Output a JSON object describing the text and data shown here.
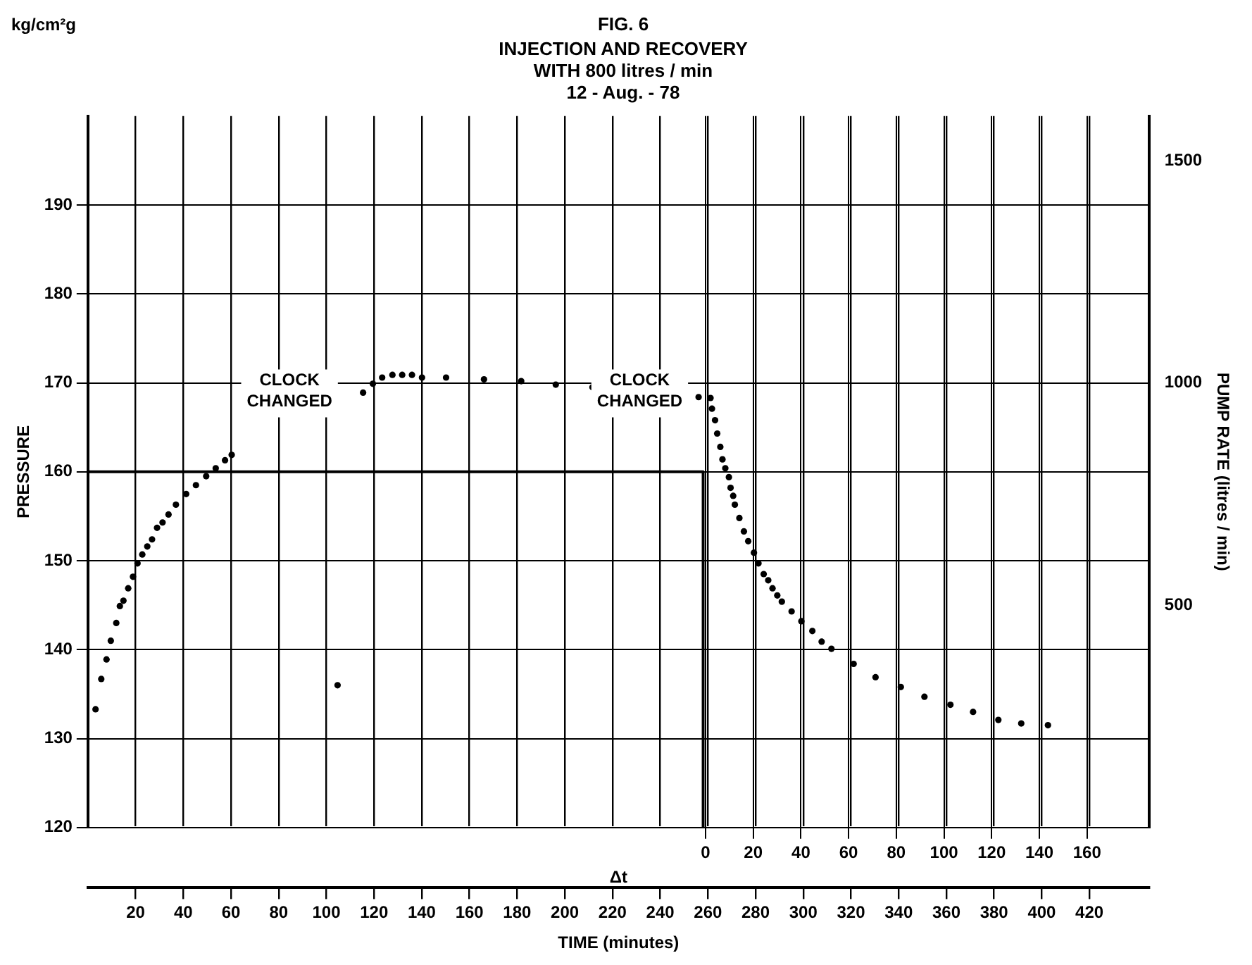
{
  "chart_data": {
    "type": "scatter",
    "title": "FIG. 6",
    "subtitle": "INJECTION AND RECOVERY\nWITH 800 litres / min\n12 - Aug. - 78",
    "xlabel": "TIME (minutes)",
    "ylabel": "PRESSURE",
    "y2label": "PUMP RATE (litres / min)",
    "x2label": "Δt",
    "annotations": [
      "kg/cm²g",
      "CLOCK CHANGED",
      "CLOCK CHANGED"
    ],
    "series": [
      {
        "type": "scatter",
        "color": "#000000",
        "x": [
          3.2,
          5.6,
          7.8,
          9.6,
          11.9,
          13.4,
          14.9,
          16.9,
          18.9,
          20.8,
          22.8,
          24.9,
          26.9,
          29,
          31.3,
          33.8,
          36.9,
          41.2,
          45.3,
          49.6,
          53.6,
          57.5,
          60.3,
          104.7,
          115.4,
          119.5,
          123.4,
          127.7,
          131.8,
          135.9,
          140.1,
          150.2,
          166.1,
          181.7,
          196.2,
          211.6,
          256.1,
          261.1,
          261.7,
          263,
          263.9,
          265.2,
          266.1,
          267.3,
          268.8,
          269.5,
          270.6,
          271.3,
          273.2,
          275.1,
          276.9,
          279.3,
          281.2,
          283.4,
          285.3,
          287.1,
          289.1,
          291,
          295.1,
          299.2,
          303.8,
          307.7,
          311.8,
          321.1,
          330.3,
          340.9,
          350.8,
          361.7,
          371.2,
          381.8,
          391.4,
          402.6
        ],
        "values": [
          133.3,
          136.7,
          138.9,
          141,
          143,
          144.9,
          145.5,
          146.9,
          148.2,
          149.7,
          150.7,
          151.6,
          152.4,
          153.7,
          154.3,
          155.2,
          156.3,
          157.5,
          158.5,
          159.5,
          160.4,
          161.3,
          161.9,
          136,
          168.9,
          169.9,
          170.6,
          170.9,
          170.9,
          170.9,
          170.6,
          170.6,
          170.4,
          170.2,
          169.8,
          169.5,
          168.4,
          168.3,
          167.1,
          165.8,
          164.3,
          162.8,
          161.4,
          160.4,
          159.4,
          158.2,
          157.3,
          156.3,
          154.8,
          153.3,
          152.2,
          150.9,
          149.7,
          148.5,
          147.8,
          146.9,
          146.1,
          145.4,
          144.3,
          143.2,
          142.1,
          140.9,
          140.1,
          138.4,
          136.9,
          135.8,
          134.7,
          133.8,
          133,
          132.1,
          131.7,
          131.5
        ]
      },
      {
        "type": "step",
        "axis": "y2",
        "color": "#000000",
        "marker": "none",
        "x": [
          0,
          258,
          258
        ],
        "values": [
          800,
          800,
          0
        ]
      }
    ],
    "xlim": [
      0,
      445
    ],
    "xticks": [
      20,
      40,
      60,
      80,
      100,
      120,
      140,
      160,
      180,
      200,
      220,
      240,
      260,
      280,
      300,
      320,
      340,
      360,
      380,
      400,
      420
    ],
    "x2lim": [
      -259,
      186
    ],
    "x2ticks": [
      0,
      20,
      40,
      60,
      80,
      100,
      120,
      140,
      160
    ],
    "ylim": [
      120,
      200
    ],
    "yticks": [
      120,
      130,
      140,
      150,
      160,
      170,
      180,
      190
    ],
    "y2lim": [
      0,
      1600
    ],
    "y2ticks": [
      500,
      1000,
      1500
    ],
    "grid": true,
    "marker": "circle"
  }
}
